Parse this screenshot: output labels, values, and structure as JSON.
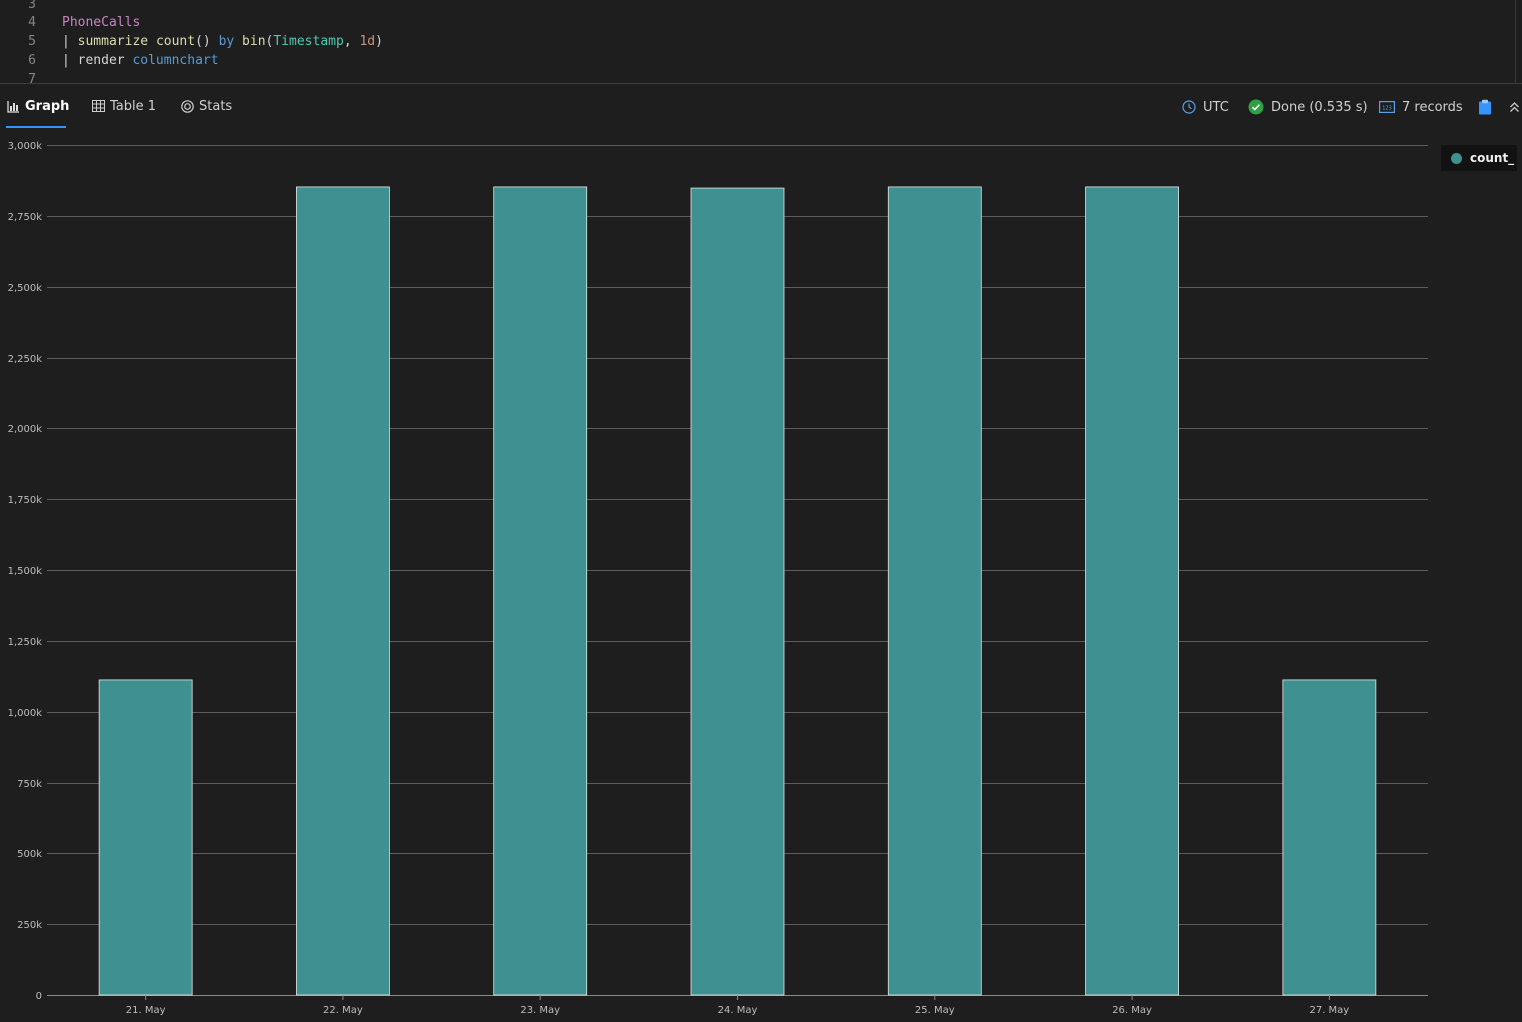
{
  "editor": {
    "lines": [
      {
        "num": "3",
        "tokens": []
      },
      {
        "num": "4",
        "tokens": [
          {
            "t": "PhoneCalls",
            "c": "tok-table"
          }
        ]
      },
      {
        "num": "5",
        "tokens": [
          {
            "t": "| ",
            "c": "tok-pipe"
          },
          {
            "t": "summarize",
            "c": "tok-kw"
          },
          {
            "t": " ",
            "c": "tok-punc"
          },
          {
            "t": "count",
            "c": "tok-fn"
          },
          {
            "t": "() ",
            "c": "tok-punc"
          },
          {
            "t": "by",
            "c": "tok-by"
          },
          {
            "t": " ",
            "c": "tok-punc"
          },
          {
            "t": "bin",
            "c": "tok-fn"
          },
          {
            "t": "(",
            "c": "tok-punc"
          },
          {
            "t": "Timestamp",
            "c": "tok-col"
          },
          {
            "t": ", ",
            "c": "tok-punc"
          },
          {
            "t": "1d",
            "c": "tok-num"
          },
          {
            "t": ")",
            "c": "tok-punc"
          }
        ]
      },
      {
        "num": "6",
        "tokens": [
          {
            "t": "| ",
            "c": "tok-pipe"
          },
          {
            "t": "render",
            "c": "tok-render"
          },
          {
            "t": " ",
            "c": "tok-punc"
          },
          {
            "t": "columnchart",
            "c": "tok-chart"
          }
        ]
      },
      {
        "num": "7",
        "tokens": []
      }
    ]
  },
  "tabs": {
    "graph": "Graph",
    "table": "Table 1",
    "stats": "Stats"
  },
  "status": {
    "timezone": "UTC",
    "done": "Done (0.535 s)",
    "records": "7 records"
  },
  "colors": {
    "bar": "#3f9090",
    "accent": "#3794ff",
    "success": "#2ea043"
  },
  "icons": {
    "graph": "bar-chart-icon",
    "table": "table-icon",
    "stats": "stats-icon",
    "timezone": "clock-icon",
    "done": "check-circle-icon",
    "records": "records-icon",
    "copy": "clipboard-icon",
    "collapse": "chevron-double-up-icon"
  },
  "legend": {
    "label": "count_"
  },
  "chart_data": {
    "type": "bar",
    "categories": [
      "21. May",
      "22. May",
      "23. May",
      "24. May",
      "25. May",
      "26. May",
      "27. May"
    ],
    "series": [
      {
        "name": "count_",
        "values": [
          1112000,
          2852000,
          2852000,
          2848000,
          2852000,
          2852000,
          1112000
        ]
      }
    ],
    "ylim": [
      0,
      3000000
    ],
    "yticks": [
      0,
      250000,
      500000,
      750000,
      1000000,
      1250000,
      1500000,
      1750000,
      2000000,
      2250000,
      2500000,
      2750000,
      3000000
    ],
    "ytick_labels": [
      "0",
      "250k",
      "500k",
      "750k",
      "1,000k",
      "1,250k",
      "1,500k",
      "1,750k",
      "2,000k",
      "2,250k",
      "2,500k",
      "2,750k",
      "3,000k"
    ],
    "grid": true,
    "legend_position": "top-right",
    "title": "",
    "xlabel": "",
    "ylabel": ""
  }
}
